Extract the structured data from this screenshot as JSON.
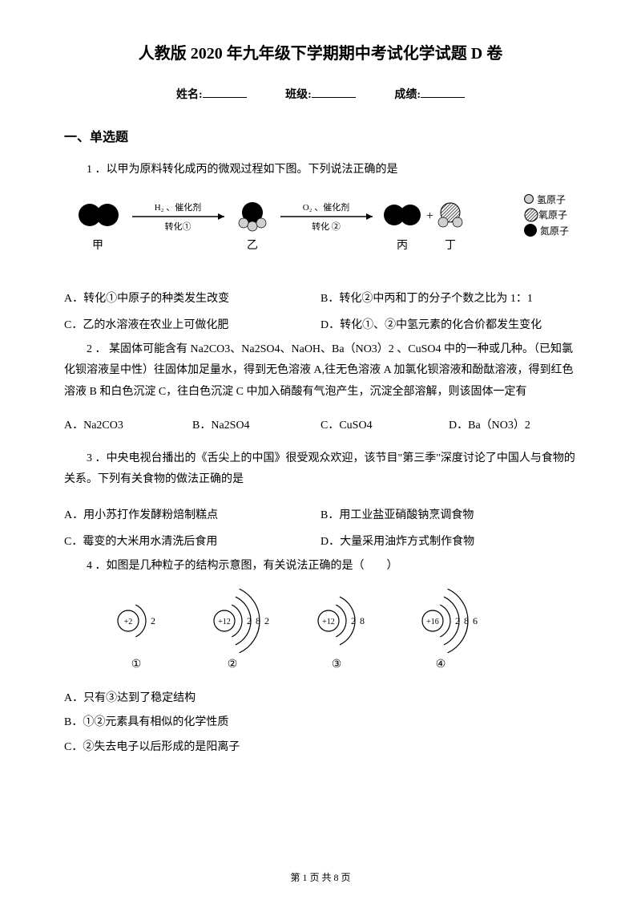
{
  "title": "人教版 2020 年九年级下学期期中考试化学试题 D 卷",
  "infoLine": {
    "nameLabel": "姓名:",
    "classLabel": "班级:",
    "scoreLabel": "成绩:"
  },
  "sectionHeader": "一、单选题",
  "q1": {
    "text": "1 ．以甲为原料转化成丙的微观过程如下图。下列说法正确的是",
    "labels": {
      "jia": "甲",
      "yi": "乙",
      "bing": "丙",
      "ding": "丁"
    },
    "arrows": {
      "a1top": "H₂ 、催化剂",
      "a1bot": "转化①",
      "a2top": "O₂ 、催化剂",
      "a2bot": "转化 ②"
    },
    "legend": {
      "h": "氢原子",
      "o": "氧原子",
      "n": "氮原子"
    },
    "opts": {
      "A": "A．转化①中原子的种类发生改变",
      "B": "B．转化②中丙和丁的分子个数之比为 1：1",
      "C": "C．乙的水溶液在农业上可做化肥",
      "D": "D．转化①、②中氢元素的化合价都发生变化"
    }
  },
  "q2": {
    "text": "2 ． 某固体可能含有 Na2CO3、Na2SO4、NaOH、Ba（NO3）2 、CuSO4 中的一种或几种。（已知氯化钡溶液呈中性）往固体加足量水，得到无色溶液 A,往无色溶液 A 加氯化钡溶液和酚酞溶液，得到红色溶液 B 和白色沉淀 C，往白色沉淀 C 中加入硝酸有气泡产生，沉淀全部溶解，则该固体一定有",
    "opts": {
      "A": "A．Na2CO3",
      "B": "B．Na2SO4",
      "C": "C．CuSO4",
      "D": "D．Ba（NO3）2"
    }
  },
  "q3": {
    "text": "3 ．中央电视台播出的《舌尖上的中国》很受观众欢迎，该节目\"第三季\"深度讨论了中国人与食物的关系。下列有关食物的做法正确的是",
    "opts": {
      "A": "A．用小苏打作发酵粉焙制糕点",
      "B": "B．用工业盐亚硝酸钠烹调食物",
      "C": "C．霉变的大米用水清洗后食用",
      "D": "D．大量采用油炸方式制作食物"
    }
  },
  "q4": {
    "text": "4 ．如图是几种粒子的结构示意图，有关说法正确的是（　　）",
    "labels": {
      "l1": "①",
      "l2": "②",
      "l3": "③",
      "l4": "④"
    },
    "atoms": {
      "a1": {
        "nucleus": "+2",
        "shells": [
          "2"
        ]
      },
      "a2": {
        "nucleus": "+12",
        "shells": [
          "2",
          "8",
          "2"
        ]
      },
      "a3": {
        "nucleus": "+12",
        "shells": [
          "2",
          "8"
        ]
      },
      "a4": {
        "nucleus": "+16",
        "shells": [
          "2",
          "8",
          "6"
        ]
      }
    },
    "opts": {
      "A": "A．只有③达到了稳定结构",
      "B": "B．①②元素具有相似的化学性质",
      "C": "C．②失去电子以后形成的是阳离子"
    }
  },
  "footer": "第 1 页 共 8 页",
  "colors": {
    "black": "#000000",
    "white": "#ffffff",
    "gray": "#d0d0d0",
    "hatch": "#808080"
  }
}
